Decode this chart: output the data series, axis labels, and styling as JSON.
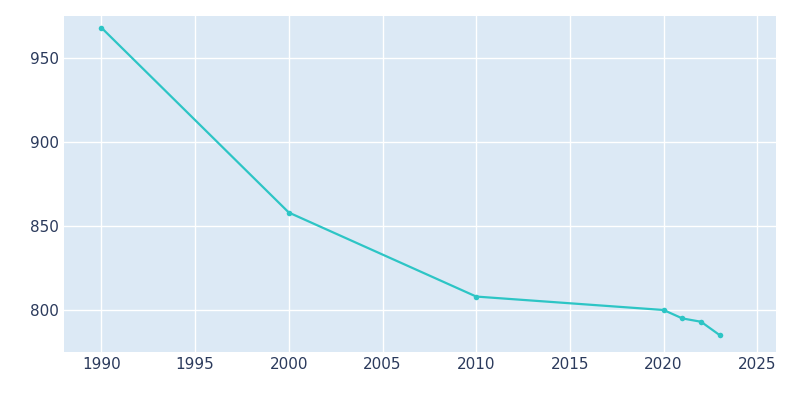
{
  "years": [
    1990,
    2000,
    2010,
    2020,
    2021,
    2022,
    2023
  ],
  "population": [
    968,
    858,
    808,
    800,
    795,
    793,
    785
  ],
  "line_color": "#2dc5c5",
  "marker_color": "#2dc5c5",
  "plot_background_color": "#dce9f5",
  "figure_background_color": "#ffffff",
  "grid_color": "#ffffff",
  "tick_label_color": "#2b3a5c",
  "xlim": [
    1988,
    2026
  ],
  "ylim": [
    775,
    975
  ],
  "xticks": [
    1990,
    1995,
    2000,
    2005,
    2010,
    2015,
    2020,
    2025
  ],
  "yticks": [
    800,
    850,
    900,
    950
  ],
  "line_width": 1.6,
  "marker_size": 4,
  "tick_fontsize": 11
}
